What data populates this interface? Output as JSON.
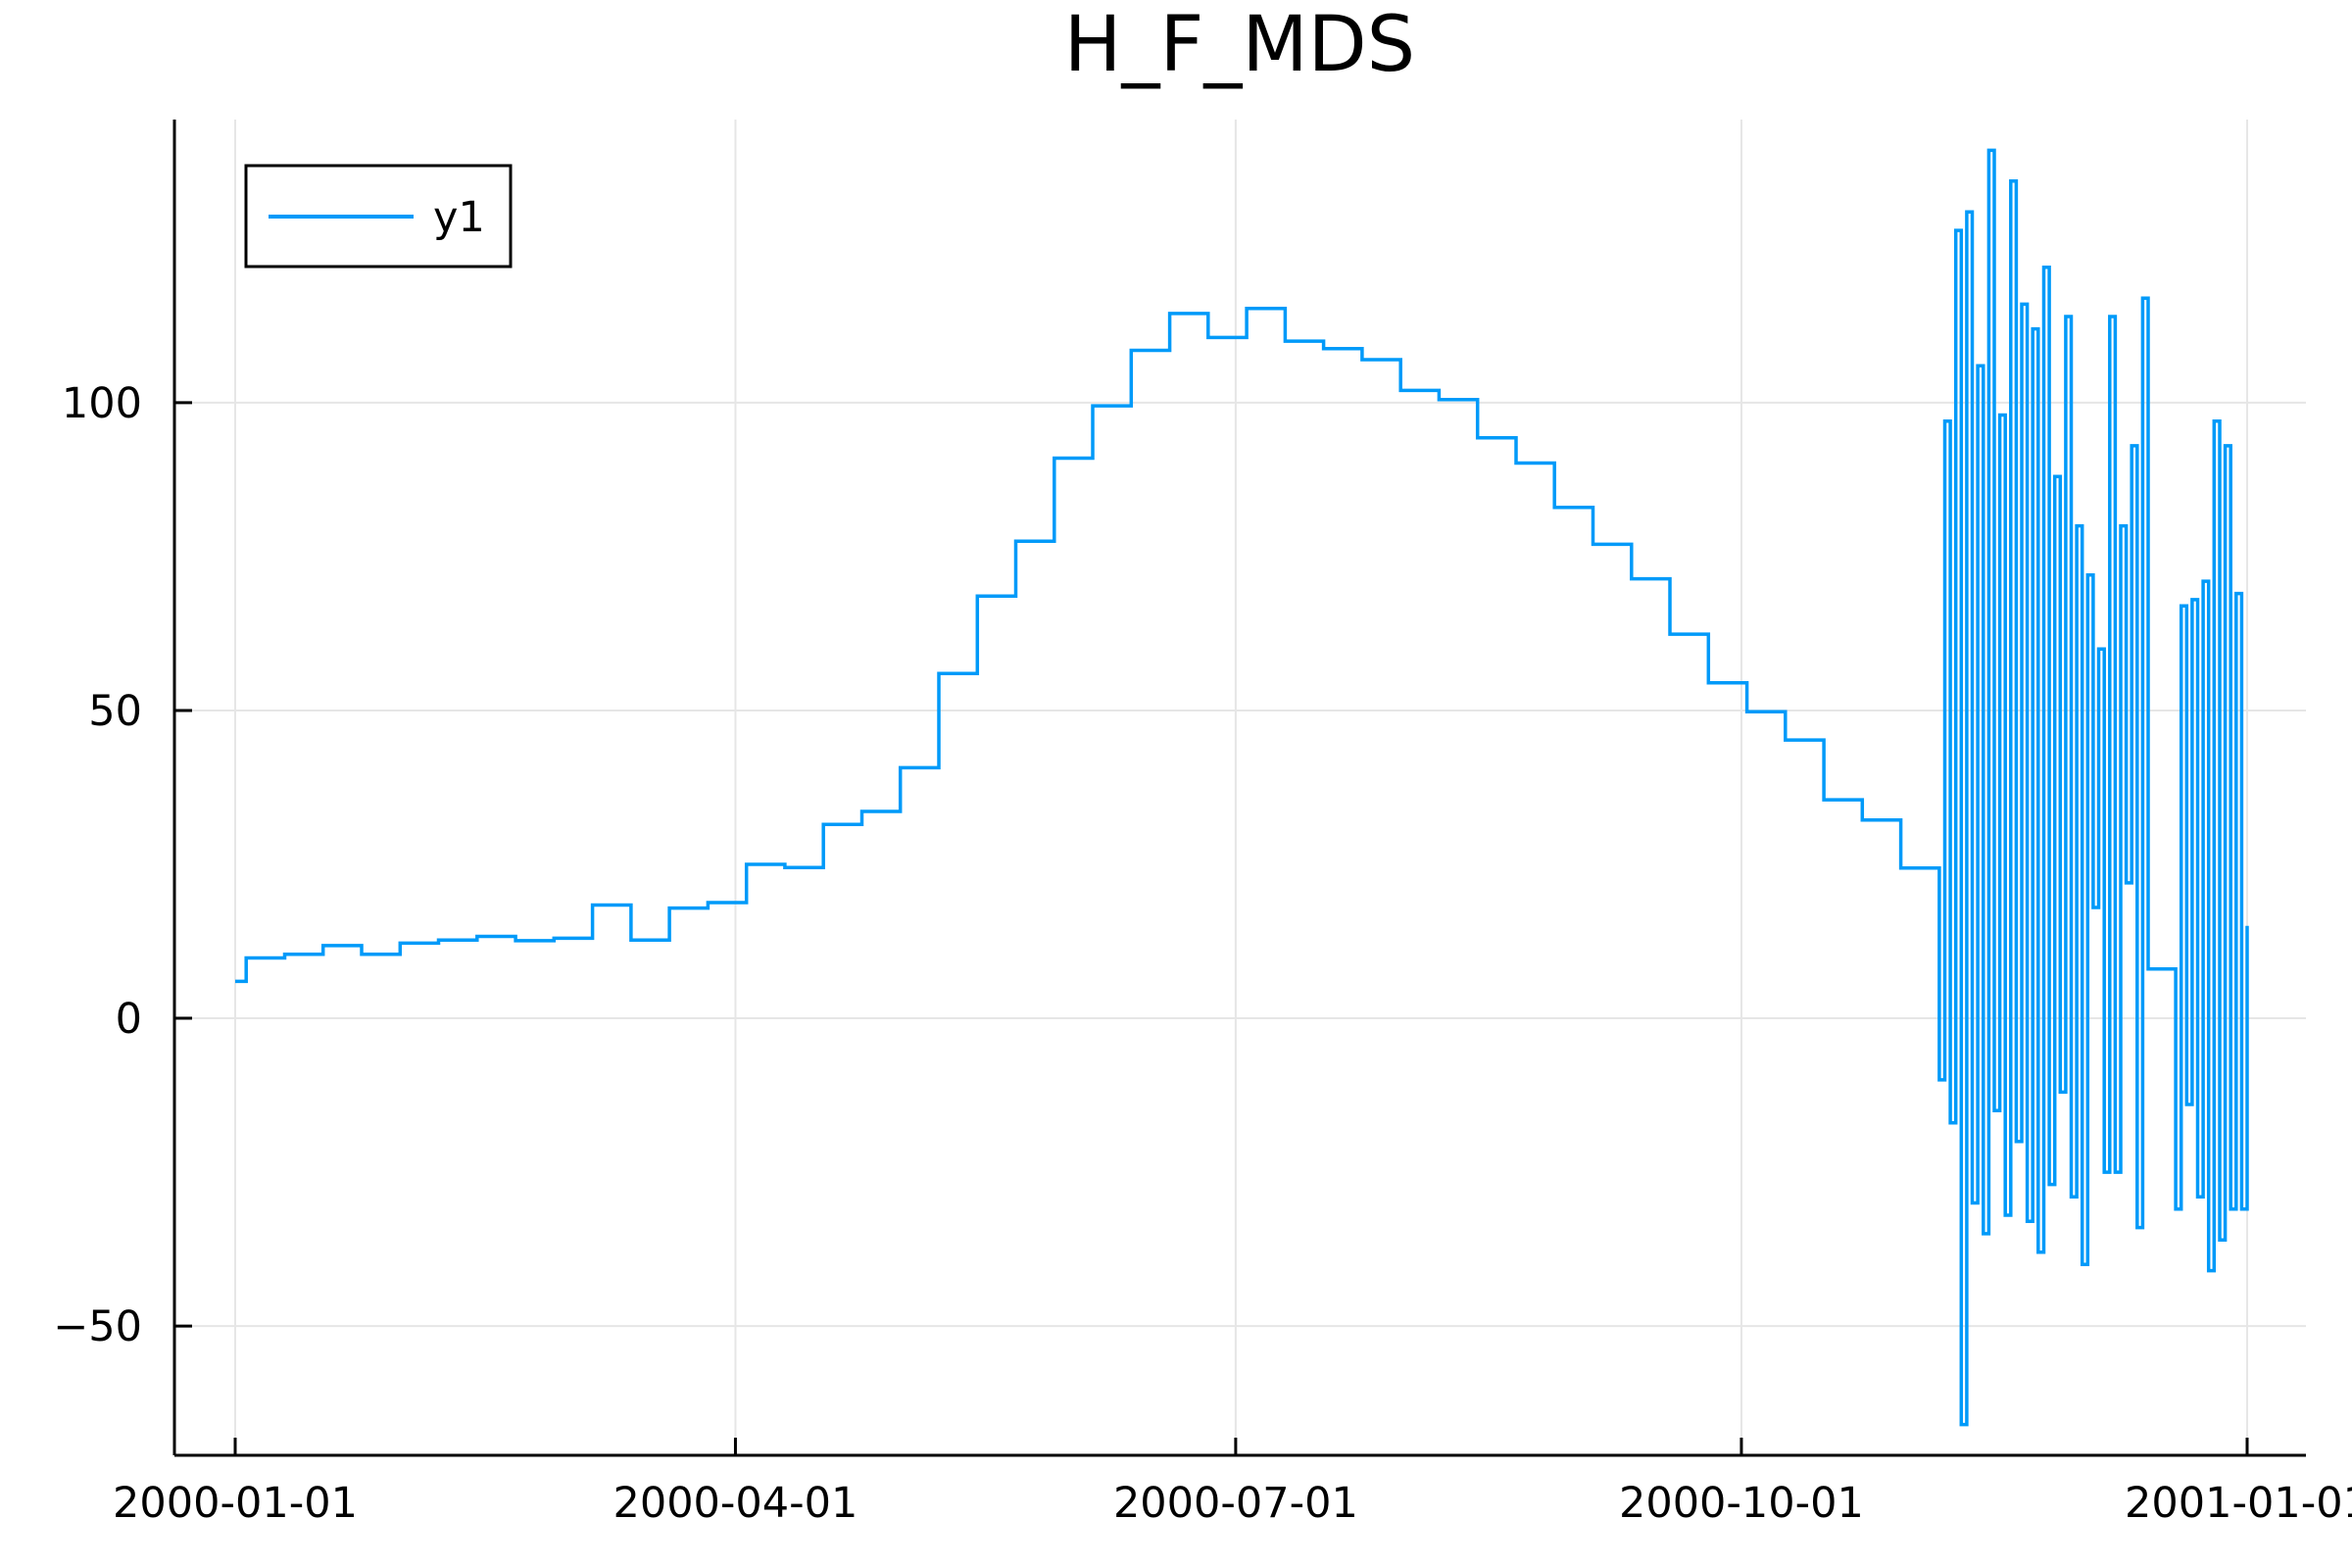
{
  "chart_data": {
    "type": "line",
    "title": "H_F_MDS",
    "xlabel": "",
    "ylabel": "",
    "x_type": "date",
    "xlim": [
      "2000-01-01",
      "2001-01-01"
    ],
    "ylim": [
      -71,
      146
    ],
    "grid": true,
    "legend_position": "top-left",
    "x_ticks": [
      {
        "value": "2000-01-01",
        "label": "2000-01-01"
      },
      {
        "value": "2000-04-01",
        "label": "2000-04-01"
      },
      {
        "value": "2000-07-01",
        "label": "2000-07-01"
      },
      {
        "value": "2000-10-01",
        "label": "2000-10-01"
      },
      {
        "value": "2001-01-01",
        "label": "2001-01-01"
      }
    ],
    "y_ticks": [
      {
        "value": -50,
        "label": "−50"
      },
      {
        "value": 0,
        "label": "0"
      },
      {
        "value": 50,
        "label": "50"
      },
      {
        "value": 100,
        "label": "100"
      }
    ],
    "series": [
      {
        "name": "y1",
        "color": "#009af9",
        "step": "post",
        "x": [
          "2000-01-01",
          "2000-01-03",
          "2000-01-10",
          "2000-01-17",
          "2000-01-24",
          "2000-01-31",
          "2000-02-07",
          "2000-02-14",
          "2000-02-21",
          "2000-02-28",
          "2000-03-06",
          "2000-03-13",
          "2000-03-20",
          "2000-03-27",
          "2000-04-03",
          "2000-04-10",
          "2000-04-17",
          "2000-04-24",
          "2000-05-01",
          "2000-05-08",
          "2000-05-15",
          "2000-05-22",
          "2000-05-29",
          "2000-06-05",
          "2000-06-12",
          "2000-06-19",
          "2000-06-26",
          "2000-07-03",
          "2000-07-10",
          "2000-07-17",
          "2000-07-24",
          "2000-07-31",
          "2000-08-07",
          "2000-08-14",
          "2000-08-21",
          "2000-08-28",
          "2000-09-04",
          "2000-09-11",
          "2000-09-18",
          "2000-09-25",
          "2000-10-02",
          "2000-10-09",
          "2000-10-16",
          "2000-10-23",
          "2000-10-30",
          "2000-11-06",
          "2000-11-07",
          "2000-11-08",
          "2000-11-09",
          "2000-11-10",
          "2000-11-11",
          "2000-11-12",
          "2000-11-13",
          "2000-11-14",
          "2000-11-15",
          "2000-11-16",
          "2000-11-17",
          "2000-11-18",
          "2000-11-19",
          "2000-11-20",
          "2000-11-21",
          "2000-11-22",
          "2000-11-23",
          "2000-11-24",
          "2000-11-25",
          "2000-11-26",
          "2000-11-27",
          "2000-11-28",
          "2000-11-29",
          "2000-11-30",
          "2000-12-01",
          "2000-12-02",
          "2000-12-03",
          "2000-12-04",
          "2000-12-05",
          "2000-12-06",
          "2000-12-07",
          "2000-12-08",
          "2000-12-09",
          "2000-12-10",
          "2000-12-11",
          "2000-12-12",
          "2000-12-13",
          "2000-12-14",
          "2000-12-18",
          "2000-12-19",
          "2000-12-20",
          "2000-12-21",
          "2000-12-22",
          "2000-12-23",
          "2000-12-24",
          "2000-12-25",
          "2000-12-26",
          "2000-12-27",
          "2000-12-28",
          "2000-12-29",
          "2000-12-30",
          "2000-12-31",
          "2001-01-01"
        ],
        "y": [
          6,
          9.8,
          10.4,
          11.8,
          10.4,
          12.2,
          12.7,
          13.3,
          12.6,
          13,
          18.4,
          12.7,
          17.9,
          18.8,
          25,
          24.5,
          31.5,
          33.6,
          40.7,
          56,
          68.6,
          77.5,
          91,
          99.5,
          108.5,
          114.5,
          110.6,
          115.3,
          110,
          108.8,
          107,
          102,
          100.5,
          94.3,
          90.2,
          83,
          77,
          71.4,
          62.4,
          54.5,
          49.8,
          45.2,
          35.5,
          32.2,
          24.4,
          -10,
          97,
          -17,
          128,
          -66,
          131,
          -30,
          106,
          -35,
          141,
          -15,
          98,
          -32,
          136,
          -20,
          116,
          -33,
          112,
          -38,
          122,
          -27,
          88,
          -12,
          114,
          -29,
          80,
          -40,
          72,
          18,
          60,
          -25,
          114,
          -25,
          80,
          22,
          93,
          -34,
          117,
          8,
          8,
          -31,
          67,
          -14,
          68,
          -29,
          71,
          -41,
          97,
          -36,
          93,
          -31,
          69,
          -31,
          15
        ]
      }
    ]
  }
}
